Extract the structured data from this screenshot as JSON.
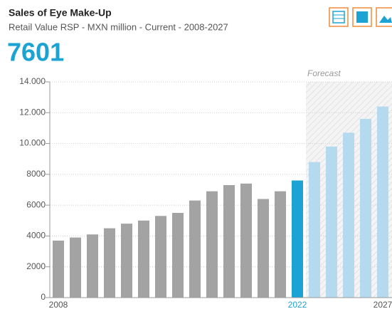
{
  "chart_data": {
    "type": "bar",
    "title": "Sales of Eye Make-Up",
    "subtitle": "Retail Value RSP - MXN million - Current - 2008-2027",
    "forecast_label": "Forecast",
    "categories": [
      "2008",
      null,
      null,
      null,
      null,
      null,
      null,
      null,
      null,
      null,
      null,
      null,
      null,
      null,
      "2022",
      null,
      null,
      null,
      null,
      "2027"
    ],
    "values": [
      3700,
      3900,
      4100,
      4500,
      4800,
      5000,
      5300,
      5500,
      6300,
      6900,
      7300,
      7400,
      6400,
      6900,
      7601,
      8800,
      9800,
      10700,
      11600,
      12400
    ],
    "colors": [
      "#a3a3a3",
      "#a3a3a3",
      "#a3a3a3",
      "#a3a3a3",
      "#a3a3a3",
      "#a3a3a3",
      "#a3a3a3",
      "#a3a3a3",
      "#a3a3a3",
      "#a3a3a3",
      "#a3a3a3",
      "#a3a3a3",
      "#a3a3a3",
      "#a3a3a3",
      "#1ba3d3",
      "#b5d9ee",
      "#b5d9ee",
      "#b5d9ee",
      "#b5d9ee",
      "#b5d9ee"
    ],
    "forecast_color": "#b5d9ee",
    "highlight_color": "#1ba3d3",
    "ylim": [
      0,
      14000
    ],
    "yticks": [
      0,
      2000,
      4000,
      6000,
      8000,
      {
        "value": 10000,
        "label": "10.000"
      },
      {
        "value": 12000,
        "label": "12.000"
      },
      {
        "value": 14000,
        "label": "14.000"
      }
    ],
    "grid": true
  }
}
